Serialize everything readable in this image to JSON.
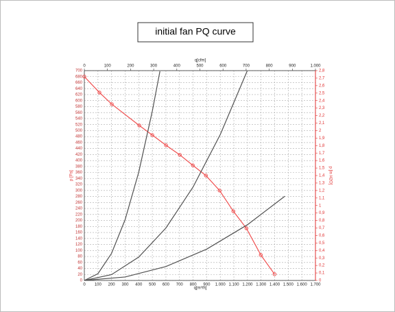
{
  "title": "initial fan PQ curve",
  "chart_data": {
    "type": "line",
    "x_label": "q[m³/h]",
    "x2_label": "q[cfm]",
    "y_label": "p [Pa]",
    "y2_label": "p [in H2O]",
    "xlim": [
      0,
      1700
    ],
    "xticks": [
      0,
      100,
      200,
      300,
      400,
      500,
      600,
      700,
      800,
      900,
      {
        "value": 1000,
        "label": "1.000"
      },
      {
        "value": 1100,
        "label": "1.100"
      },
      {
        "value": 1200,
        "label": "1.200"
      },
      {
        "value": 1300,
        "label": "1.300"
      },
      {
        "value": 1400,
        "label": "1.400"
      },
      {
        "value": 1500,
        "label": "1.500"
      },
      {
        "value": 1600,
        "label": "1.600"
      },
      {
        "value": 1700,
        "label": "1.700"
      }
    ],
    "x2lim": [
      0,
      1000
    ],
    "x2ticks": [
      0,
      100,
      200,
      300,
      400,
      500,
      600,
      700,
      800,
      900,
      {
        "value": 1000,
        "label": "1.000"
      }
    ],
    "ylim": [
      0,
      700
    ],
    "yticks": [
      0,
      20,
      40,
      60,
      80,
      100,
      120,
      140,
      160,
      180,
      200,
      220,
      240,
      260,
      280,
      300,
      320,
      340,
      360,
      380,
      400,
      420,
      440,
      460,
      480,
      500,
      520,
      540,
      560,
      580,
      600,
      620,
      640,
      660,
      680,
      700
    ],
    "y2lim": [
      0,
      2.8
    ],
    "y2ticks": [
      0,
      {
        "value": 0.1,
        "label": "0,1"
      },
      {
        "value": 0.2,
        "label": "0,2"
      },
      {
        "value": 0.3,
        "label": "0,3"
      },
      {
        "value": 0.4,
        "label": "0,4"
      },
      {
        "value": 0.5,
        "label": "0,5"
      },
      {
        "value": 0.6,
        "label": "0,6"
      },
      {
        "value": 0.7,
        "label": "0,7"
      },
      {
        "value": 0.8,
        "label": "0,8"
      },
      {
        "value": 0.9,
        "label": "0,9"
      },
      1,
      {
        "value": 1.1,
        "label": "1,1"
      },
      {
        "value": 1.2,
        "label": "1,2"
      },
      {
        "value": 1.3,
        "label": "1,3"
      },
      {
        "value": 1.4,
        "label": "1,4"
      },
      {
        "value": 1.5,
        "label": "1,5"
      },
      {
        "value": 1.6,
        "label": "1,6"
      },
      {
        "value": 1.7,
        "label": "1,7"
      },
      {
        "value": 1.8,
        "label": "1,8"
      },
      {
        "value": 1.9,
        "label": "1,9"
      },
      2,
      {
        "value": 2.1,
        "label": "2,1"
      },
      {
        "value": 2.2,
        "label": "2,2"
      },
      {
        "value": 2.3,
        "label": "2,3"
      },
      {
        "value": 2.4,
        "label": "2,4"
      },
      {
        "value": 2.5,
        "label": "2,5"
      },
      {
        "value": 2.6,
        "label": "2,6"
      },
      {
        "value": 2.7,
        "label": "2,7"
      },
      {
        "value": 2.8,
        "label": "2,8"
      }
    ],
    "grid": true,
    "series": [
      {
        "color": "#f05050",
        "markers": true,
        "x": [
          0,
          111,
          202,
          404,
          500,
          601,
          702,
          798,
          894,
          995,
          1096,
          1192,
          1298,
          1399
        ],
        "values": [
          680,
          627,
          588,
          517,
          485,
          451,
          419,
          384,
          350,
          300,
          231,
          174,
          85,
          21
        ]
      },
      {
        "color": "#505050",
        "markers": false,
        "x": [
          0,
          100,
          200,
          300,
          400,
          500,
          556
        ],
        "values": [
          0,
          22.6,
          90.3,
          203,
          361,
          565,
          698
        ]
      },
      {
        "color": "#505050",
        "markers": false,
        "x": [
          0,
          200,
          400,
          600,
          800,
          1000,
          1197
        ],
        "values": [
          0,
          19.5,
          78,
          175,
          312,
          487,
          698
        ]
      },
      {
        "color": "#505050",
        "markers": false,
        "x": [
          0,
          300,
          600,
          900,
          1200,
          1475
        ],
        "values": [
          0,
          11.6,
          46.4,
          104.5,
          186,
          281
        ]
      }
    ]
  }
}
